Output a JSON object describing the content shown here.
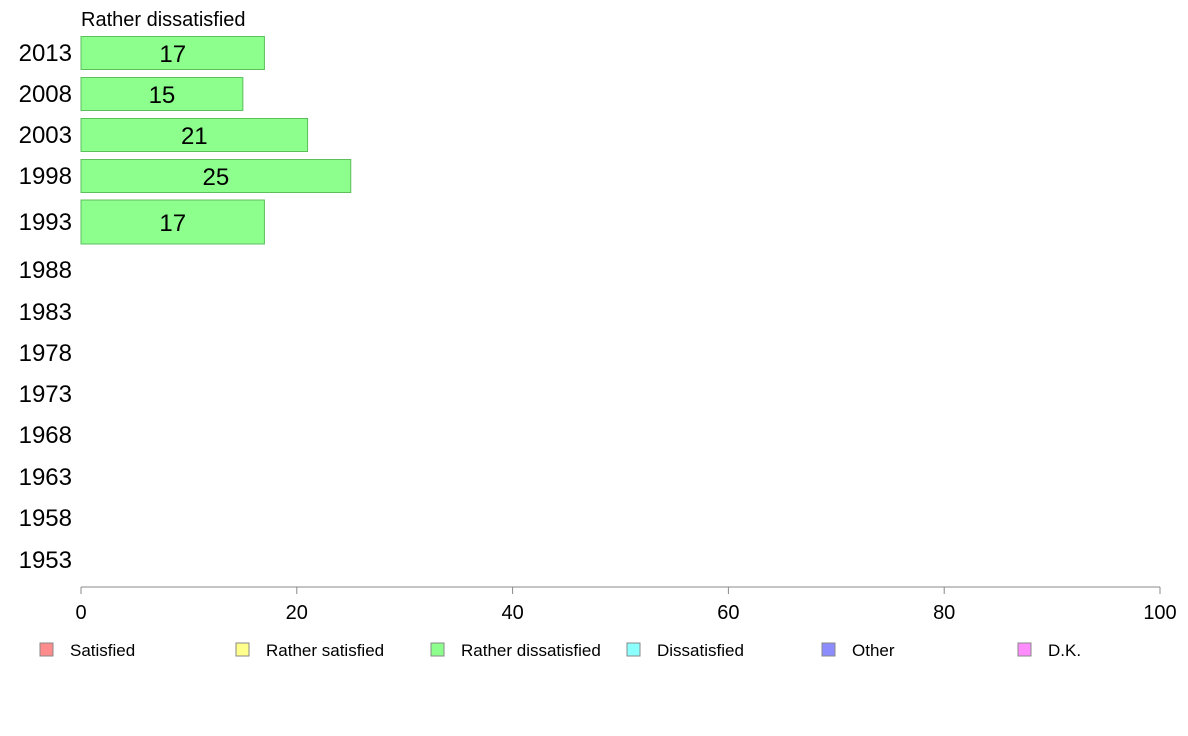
{
  "chart_data": {
    "type": "bar",
    "orientation": "horizontal",
    "title": "Rather dissatisfied",
    "categories": [
      "2013",
      "2008",
      "2003",
      "1998",
      "1993",
      "1988",
      "1983",
      "1978",
      "1973",
      "1968",
      "1963",
      "1958",
      "1953"
    ],
    "series": [
      {
        "name": "Rather dissatisfied",
        "values": [
          17,
          15,
          21,
          25,
          17,
          null,
          null,
          null,
          null,
          null,
          null,
          null,
          null
        ]
      }
    ],
    "xlim": [
      0,
      100
    ],
    "xticks": [
      0,
      20,
      40,
      60,
      80,
      100
    ],
    "grid": false,
    "legend": {
      "placement": "bottom",
      "entries": [
        {
          "label": "Satisfied",
          "color": "#ff8c8c"
        },
        {
          "label": "Rather satisfied",
          "color": "#ffff8c"
        },
        {
          "label": "Rather dissatisfied",
          "color": "#8cff8c"
        },
        {
          "label": "Dissatisfied",
          "color": "#8cffff"
        },
        {
          "label": "Other",
          "color": "#8c8cff"
        },
        {
          "label": "D.K.",
          "color": "#ff8cff"
        }
      ]
    },
    "bar_color": "#8cff8c",
    "bar_stroke": "#5cbf5c",
    "axis_color": "#888888"
  }
}
